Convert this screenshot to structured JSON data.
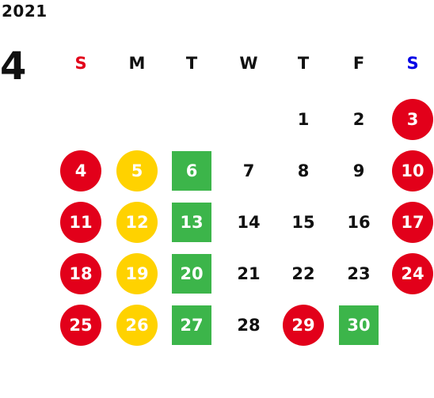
{
  "calendar": {
    "year": "2021",
    "month": "4",
    "weekdays": [
      {
        "label": "S",
        "color": "#e2001a"
      },
      {
        "label": "M",
        "color": "#111111"
      },
      {
        "label": "T",
        "color": "#111111"
      },
      {
        "label": "W",
        "color": "#111111"
      },
      {
        "label": "T",
        "color": "#111111"
      },
      {
        "label": "F",
        "color": "#111111"
      },
      {
        "label": "S",
        "color": "#0000e6"
      }
    ],
    "legend_colors": {
      "red": "#e2001a",
      "yellow": "#ffd200",
      "green": "#3cb54a"
    },
    "days": [
      {
        "num": "1",
        "style": "plain"
      },
      {
        "num": "2",
        "style": "plain"
      },
      {
        "num": "3",
        "style": "red-circle"
      },
      {
        "num": "4",
        "style": "red-circle"
      },
      {
        "num": "5",
        "style": "yellow-circle"
      },
      {
        "num": "6",
        "style": "green-square"
      },
      {
        "num": "7",
        "style": "plain"
      },
      {
        "num": "8",
        "style": "plain"
      },
      {
        "num": "9",
        "style": "plain"
      },
      {
        "num": "10",
        "style": "red-circle"
      },
      {
        "num": "11",
        "style": "red-circle"
      },
      {
        "num": "12",
        "style": "yellow-circle"
      },
      {
        "num": "13",
        "style": "green-square"
      },
      {
        "num": "14",
        "style": "plain"
      },
      {
        "num": "15",
        "style": "plain"
      },
      {
        "num": "16",
        "style": "plain"
      },
      {
        "num": "17",
        "style": "red-circle"
      },
      {
        "num": "18",
        "style": "red-circle"
      },
      {
        "num": "19",
        "style": "yellow-circle"
      },
      {
        "num": "20",
        "style": "green-square"
      },
      {
        "num": "21",
        "style": "plain"
      },
      {
        "num": "22",
        "style": "plain"
      },
      {
        "num": "23",
        "style": "plain"
      },
      {
        "num": "24",
        "style": "red-circle"
      },
      {
        "num": "25",
        "style": "red-circle"
      },
      {
        "num": "26",
        "style": "yellow-circle"
      },
      {
        "num": "27",
        "style": "green-square"
      },
      {
        "num": "28",
        "style": "plain"
      },
      {
        "num": "29",
        "style": "red-circle"
      },
      {
        "num": "30",
        "style": "green-square"
      }
    ]
  }
}
